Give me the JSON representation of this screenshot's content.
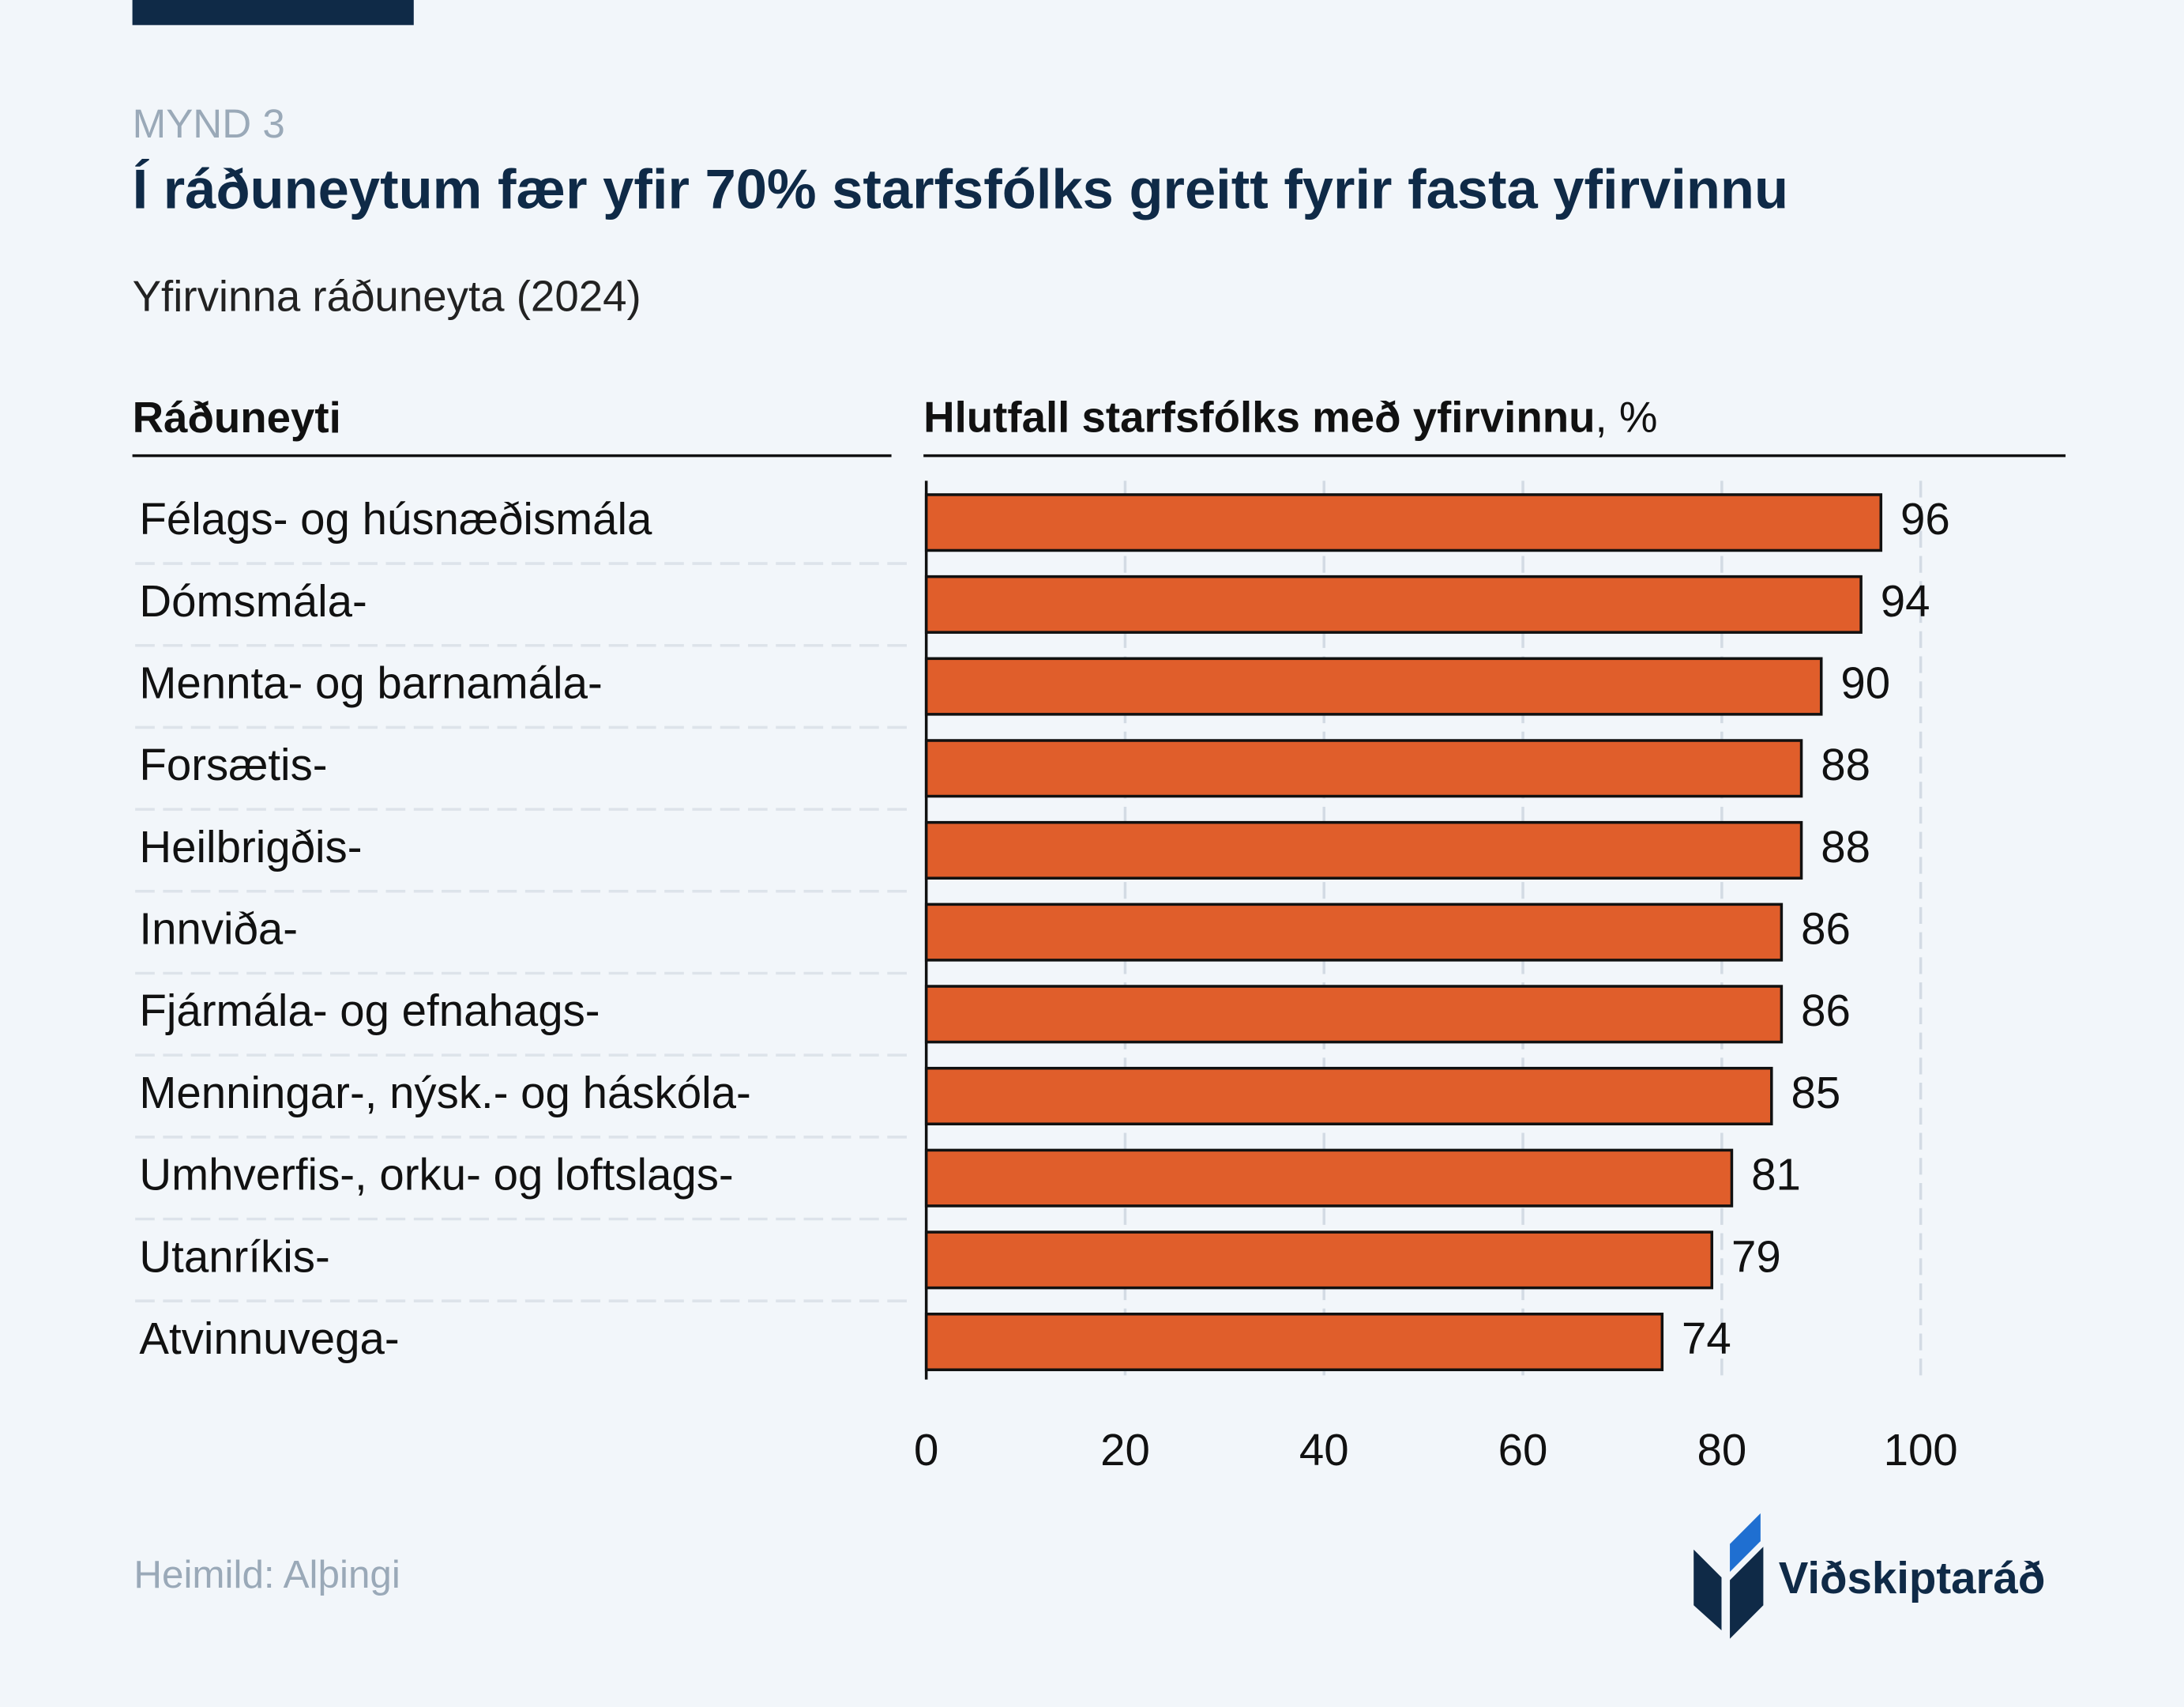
{
  "chart_data": {
    "type": "bar",
    "orientation": "horizontal",
    "kicker": "MYND 3",
    "title": "Í ráðuneytum fær yfir 70% starfsfólks greitt fyrir fasta yfirvinnu",
    "subtitle": "Yfirvinna ráðuneyta (2024)",
    "category_header": "Ráðuneyti",
    "x_label": "Hlutfall starfsfólks með yfirvinnu",
    "x_unit": ", %",
    "categories": [
      "Félags- og húsnæðismála",
      "Dómsmála-",
      "Mennta- og barnamála-",
      "Forsætis-",
      "Heilbrigðis-",
      "Innviða-",
      "Fjármála- og efnahags-",
      "Menningar-, nýsk.- og háskóla-",
      "Umhverfis-, orku- og loftslags-",
      "Utanríkis-",
      "Atvinnuvega-"
    ],
    "values": [
      96,
      94,
      90,
      88,
      88,
      86,
      86,
      85,
      81,
      79,
      74
    ],
    "color": "#e05e2b",
    "xlim": [
      0,
      100
    ],
    "xticks": [
      0,
      20,
      40,
      60,
      80,
      100
    ],
    "grid": true,
    "source": "Heimild: Alþingi",
    "brand": "Viðskiptaráð"
  }
}
